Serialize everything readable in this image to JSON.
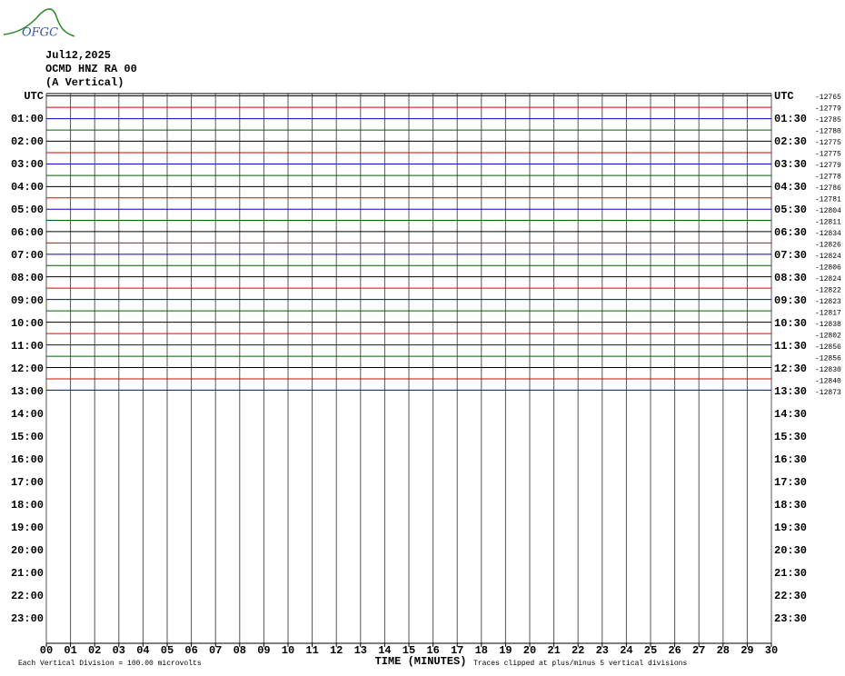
{
  "logo": "OFGC",
  "chart_data": {
    "type": "helicorder",
    "title_lines": [
      "Jul12,2025",
      "OCMD HNZ RA 00",
      "(A Vertical)"
    ],
    "xlabel": "TIME (MINUTES)",
    "footnote_left": "Each Vertical Division =  100.00 microvolts",
    "footnote_right": "Traces clipped at plus/minus 5 vertical divisions",
    "xlim": [
      0,
      30
    ],
    "xticks": [
      {
        "value": 0,
        "label": "00"
      },
      {
        "value": 1,
        "label": "01"
      },
      {
        "value": 2,
        "label": "02"
      },
      {
        "value": 3,
        "label": "03"
      },
      {
        "value": 4,
        "label": "04"
      },
      {
        "value": 5,
        "label": "05"
      },
      {
        "value": 6,
        "label": "06"
      },
      {
        "value": 7,
        "label": "07"
      },
      {
        "value": 8,
        "label": "08"
      },
      {
        "value": 9,
        "label": "09"
      },
      10,
      11,
      12,
      13,
      14,
      15,
      16,
      17,
      18,
      19,
      20,
      21,
      22,
      23,
      24,
      25,
      26,
      27,
      28,
      29,
      30
    ],
    "grid": true,
    "left_labels": [
      "UTC",
      "01:00",
      "02:00",
      "03:00",
      "04:00",
      "05:00",
      "06:00",
      "07:00",
      "08:00",
      "09:00",
      "10:00",
      "11:00",
      "12:00",
      "13:00",
      "14:00",
      "15:00",
      "16:00",
      "17:00",
      "18:00",
      "19:00",
      "20:00",
      "21:00",
      "22:00",
      "23:00"
    ],
    "right_labels": [
      "UTC",
      "01:30",
      "02:30",
      "03:30",
      "04:30",
      "05:30",
      "06:30",
      "07:30",
      "08:30",
      "09:30",
      "10:30",
      "11:30",
      "12:30",
      "13:30",
      "14:30",
      "15:30",
      "16:30",
      "17:30",
      "18:30",
      "19:30",
      "20:30",
      "21:30",
      "22:30",
      "23:30"
    ],
    "row_count": 48,
    "traces": [
      {
        "color": "#000000",
        "offset": -12765,
        "amplitude": 1
      },
      {
        "color": "#e00000",
        "offset": -12779,
        "amplitude": 0.6
      },
      {
        "color": "#0000d0",
        "offset": -12785,
        "amplitude": 0.8
      },
      {
        "color": "#006000",
        "offset": -12780,
        "amplitude": 0.7
      },
      {
        "color": "#000000",
        "offset": -12775,
        "amplitude": 1.2
      },
      {
        "color": "#e00000",
        "offset": -12775,
        "amplitude": 0.9
      },
      {
        "color": "#0000d0",
        "offset": -12779,
        "amplitude": 1
      },
      {
        "color": "#006000",
        "offset": -12778,
        "amplitude": 0.8
      },
      {
        "color": "#000000",
        "offset": -12786,
        "amplitude": 1.2
      },
      {
        "color": "#e00000",
        "offset": -12781,
        "amplitude": 1.5
      },
      {
        "color": "#0000d0",
        "offset": -12804,
        "amplitude": 1.3
      },
      {
        "color": "#006000",
        "offset": -12811,
        "amplitude": 1.8
      },
      {
        "color": "#000000",
        "offset": -12834,
        "amplitude": 2
      },
      {
        "color": "#e00000",
        "offset": -12826,
        "amplitude": 2
      },
      {
        "color": "#0000d0",
        "offset": -12824,
        "amplitude": 2
      },
      {
        "color": "#006000",
        "offset": -12806,
        "amplitude": 2.2
      },
      {
        "color": "#000000",
        "offset": -12824,
        "amplitude": 2.5
      },
      {
        "color": "#e00000",
        "offset": -12822,
        "amplitude": 2.5
      },
      {
        "color": "#0000d0",
        "offset": -12823,
        "amplitude": 2.5
      },
      {
        "color": "#006000",
        "offset": -12817,
        "amplitude": 2.5
      },
      {
        "color": "#000000",
        "offset": -12838,
        "amplitude": 2.5
      },
      {
        "color": "#e00000",
        "offset": -12802,
        "amplitude": 2.5
      },
      {
        "color": "#0000d0",
        "offset": -12856,
        "amplitude": 2.5
      },
      {
        "color": "#006000",
        "offset": -12856,
        "amplitude": 2.5
      },
      {
        "color": "#000000",
        "offset": -12830,
        "amplitude": 2.8
      },
      {
        "color": "#e00000",
        "offset": -12840,
        "amplitude": 2.8
      },
      {
        "color": "#0000d0",
        "offset": -12873,
        "amplitude": 3
      }
    ]
  }
}
